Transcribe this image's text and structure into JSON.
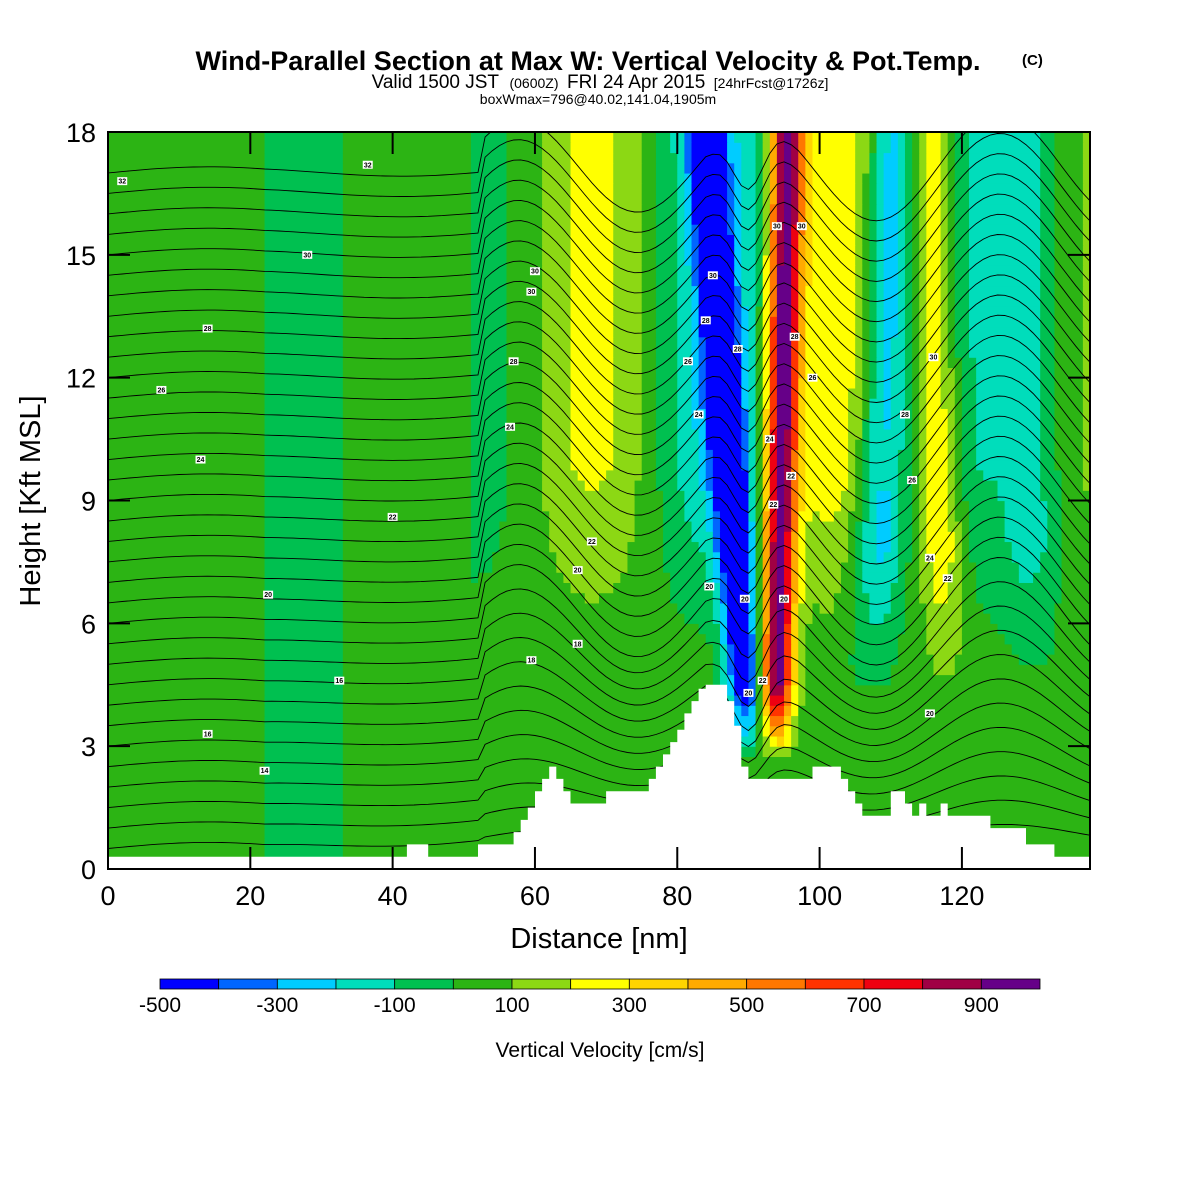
{
  "title": {
    "main": "Wind-Parallel Section at Max W: Vertical Velocity & Pot.Temp.",
    "copyright": "(C)",
    "valid_prefix": "Valid 1500 JST",
    "valid_zulu": "(0600Z)",
    "valid_date": "FRI 24 Apr 2015",
    "forecast": "[24hrFcst@1726z]",
    "boxw": "boxWmax=796@40.02,141.04,1905m"
  },
  "chart_data": {
    "type": "heatmap",
    "xlabel": "Distance [nm]",
    "ylabel": "Height [Kft MSL]",
    "xlim": [
      0,
      138
    ],
    "ylim": [
      0,
      18
    ],
    "x_ticks": [
      "0",
      "20",
      "40",
      "60",
      "80",
      "100",
      "120"
    ],
    "y_ticks": [
      "0",
      "3",
      "6",
      "9",
      "12",
      "15",
      "18"
    ],
    "colorbar": {
      "title": "Vertical Velocity [cm/s]",
      "labels": [
        "-500",
        "-300",
        "-100",
        "100",
        "300",
        "500",
        "700",
        "900"
      ],
      "bin_edges": [
        -500,
        -400,
        -300,
        -200,
        -100,
        0,
        100,
        200,
        300,
        400,
        500,
        600,
        700,
        800,
        900,
        1000
      ],
      "colors": [
        "#0000ff",
        "#0066ff",
        "#00ccff",
        "#00ddbb",
        "#00c050",
        "#2cb414",
        "#8cd814",
        "#ffff00",
        "#ffd400",
        "#ffaa00",
        "#ff7700",
        "#ff3300",
        "#ee0011",
        "#a00044",
        "#660088"
      ]
    },
    "features": {
      "downdraft_core_x": 88,
      "updraft_core_x": 94.5,
      "downdraft_min_cm_s": -500,
      "updraft_max_cm_s": 796
    },
    "terrain": {
      "x": [
        0,
        40,
        41,
        42,
        45,
        46,
        51,
        52,
        56,
        57,
        58,
        59,
        60,
        61,
        62,
        63,
        64,
        65,
        66,
        70,
        75,
        76,
        77,
        78,
        79,
        80,
        81,
        82,
        83,
        84,
        85,
        86,
        87,
        88,
        89,
        90,
        91,
        92,
        93,
        94,
        95,
        96,
        97,
        98,
        99,
        100,
        101,
        102,
        103,
        104,
        105,
        106,
        107,
        108,
        110,
        111,
        112,
        113,
        114,
        115,
        116,
        117,
        118,
        120,
        121,
        122,
        123,
        124,
        125,
        126,
        127,
        128,
        129,
        130,
        131,
        132,
        133,
        134,
        138
      ],
      "y": [
        0.3,
        0.3,
        0.3,
        0.6,
        0.3,
        0.3,
        0.3,
        0.6,
        0.6,
        0.9,
        1.2,
        1.5,
        1.9,
        2.2,
        2.5,
        2.2,
        1.9,
        1.6,
        1.6,
        1.9,
        1.9,
        2.2,
        2.5,
        2.8,
        3.1,
        3.4,
        3.8,
        4.1,
        4.4,
        4.5,
        4.5,
        4.5,
        4.1,
        3.5,
        2.5,
        2.2,
        2.2,
        2.2,
        2.2,
        2.2,
        2.2,
        2.2,
        2.2,
        2.2,
        2.5,
        2.5,
        2.5,
        2.5,
        2.2,
        1.9,
        1.6,
        1.3,
        1.3,
        1.3,
        1.9,
        1.9,
        1.6,
        1.3,
        1.6,
        1.3,
        1.3,
        1.6,
        1.3,
        1.3,
        1.3,
        1.3,
        1.3,
        1.0,
        1.0,
        1.0,
        1.0,
        1.0,
        0.6,
        0.6,
        0.6,
        0.6,
        0.3,
        0.3,
        0.3
      ]
    },
    "contour_labels": [
      {
        "x": 2,
        "y": 16.8,
        "text": "32"
      },
      {
        "x": 36.5,
        "y": 17.2,
        "text": "32"
      },
      {
        "x": 28,
        "y": 15.0,
        "text": "30"
      },
      {
        "x": 60,
        "y": 14.6,
        "text": "30"
      },
      {
        "x": 59.5,
        "y": 14.1,
        "text": "30"
      },
      {
        "x": 14,
        "y": 13.2,
        "text": "28"
      },
      {
        "x": 57,
        "y": 12.4,
        "text": "28"
      },
      {
        "x": 7.5,
        "y": 11.7,
        "text": "26"
      },
      {
        "x": 56.5,
        "y": 10.8,
        "text": "24"
      },
      {
        "x": 13,
        "y": 10.0,
        "text": "24"
      },
      {
        "x": 40,
        "y": 8.6,
        "text": "22"
      },
      {
        "x": 68,
        "y": 8.0,
        "text": "22"
      },
      {
        "x": 66,
        "y": 7.3,
        "text": "20"
      },
      {
        "x": 22.5,
        "y": 6.7,
        "text": "20"
      },
      {
        "x": 66,
        "y": 5.5,
        "text": "18"
      },
      {
        "x": 59.5,
        "y": 5.1,
        "text": "18"
      },
      {
        "x": 32.5,
        "y": 4.6,
        "text": "16"
      },
      {
        "x": 14,
        "y": 3.3,
        "text": "16"
      },
      {
        "x": 22,
        "y": 2.4,
        "text": "14"
      },
      {
        "x": 85,
        "y": 14.5,
        "text": "30"
      },
      {
        "x": 84,
        "y": 13.4,
        "text": "28"
      },
      {
        "x": 81.5,
        "y": 12.4,
        "text": "26"
      },
      {
        "x": 83,
        "y": 11.1,
        "text": "24"
      },
      {
        "x": 88.5,
        "y": 12.7,
        "text": "28"
      },
      {
        "x": 94,
        "y": 15.7,
        "text": "30"
      },
      {
        "x": 97.5,
        "y": 15.7,
        "text": "30"
      },
      {
        "x": 96.5,
        "y": 13.0,
        "text": "28"
      },
      {
        "x": 99,
        "y": 12.0,
        "text": "26"
      },
      {
        "x": 93,
        "y": 10.5,
        "text": "24"
      },
      {
        "x": 96,
        "y": 9.6,
        "text": "22"
      },
      {
        "x": 93.5,
        "y": 8.9,
        "text": "22"
      },
      {
        "x": 84.5,
        "y": 6.9,
        "text": "20"
      },
      {
        "x": 89.5,
        "y": 6.6,
        "text": "20"
      },
      {
        "x": 95,
        "y": 6.6,
        "text": "20"
      },
      {
        "x": 92,
        "y": 4.6,
        "text": "22"
      },
      {
        "x": 90,
        "y": 4.3,
        "text": "20"
      },
      {
        "x": 116,
        "y": 12.5,
        "text": "30"
      },
      {
        "x": 112,
        "y": 11.1,
        "text": "28"
      },
      {
        "x": 113,
        "y": 9.5,
        "text": "26"
      },
      {
        "x": 115.5,
        "y": 7.6,
        "text": "24"
      },
      {
        "x": 118,
        "y": 7.1,
        "text": "22"
      },
      {
        "x": 115.5,
        "y": 3.8,
        "text": "20"
      }
    ]
  }
}
